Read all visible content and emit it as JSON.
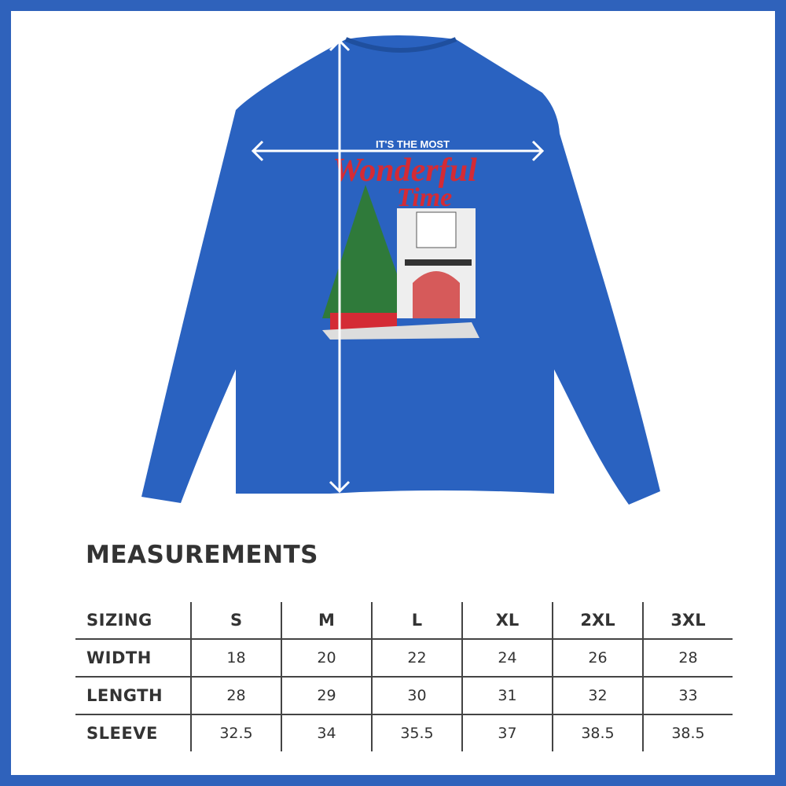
{
  "colors": {
    "frame": "#2f62bb",
    "shirt": "#2a62c0",
    "text": "#333333",
    "graphic_red": "#d42b35",
    "tree_green": "#2f7a3a"
  },
  "graphic": {
    "line1": "IT'S THE MOST",
    "line2": "Wonderful",
    "line3": "Time"
  },
  "measurements": {
    "title": "MEASUREMENTS",
    "headers": [
      "SIZING",
      "S",
      "M",
      "L",
      "XL",
      "2XL",
      "3XL"
    ],
    "rows": [
      {
        "label": "WIDTH",
        "values": [
          "18",
          "20",
          "22",
          "24",
          "26",
          "28"
        ]
      },
      {
        "label": "LENGTH",
        "values": [
          "28",
          "29",
          "30",
          "31",
          "32",
          "33"
        ]
      },
      {
        "label": "SLEEVE",
        "values": [
          "32.5",
          "34",
          "35.5",
          "37",
          "38.5",
          "38.5"
        ]
      }
    ]
  }
}
